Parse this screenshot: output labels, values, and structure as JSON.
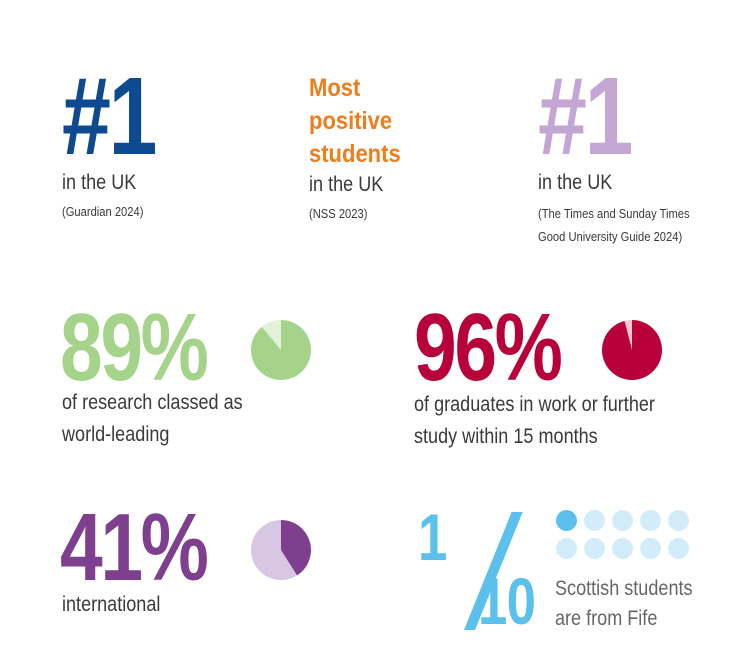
{
  "stats": {
    "guardian": {
      "headline": "#1",
      "label": "in the UK",
      "source": "(Guardian 2024)",
      "color": "#0d4a8f"
    },
    "nss": {
      "headline_lines": [
        "Most",
        "positive",
        "students"
      ],
      "label": "in the UK",
      "source": "(NSS 2023)",
      "color": "#ee7d1a"
    },
    "times": {
      "headline": "#1",
      "label": "in the UK",
      "source_lines": [
        "(The Times and Sunday Times",
        "Good University Guide 2024)"
      ],
      "color": "#c3a6d4"
    },
    "research": {
      "headline": "89%",
      "value": 89,
      "label_lines": [
        "of research classed as",
        "world-leading"
      ],
      "color": "#a5d38a",
      "light_color": "#e3f1d9"
    },
    "graduates": {
      "headline": "96%",
      "value": 96,
      "label_lines": [
        "of graduates in work or further",
        "study within 15 months"
      ],
      "color": "#b8003a",
      "light_color": "#f1c8d3"
    },
    "international": {
      "headline": "41%",
      "value": 41,
      "label": "international",
      "color": "#7e3f8e",
      "light_color": "#d8c7e3"
    },
    "fife": {
      "numerator": "1",
      "denominator": "10",
      "value": 0.1,
      "label_lines": [
        "Scottish students",
        "are from Fife"
      ],
      "color": "#5bc0eb",
      "light_color": "#d2ecf9"
    }
  }
}
